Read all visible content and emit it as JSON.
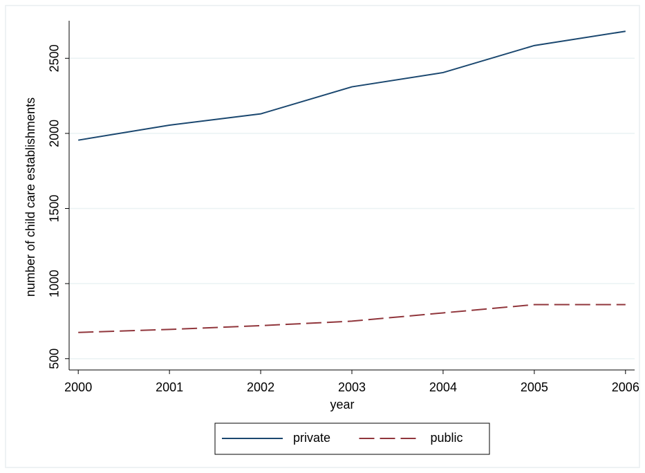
{
  "chart_data": {
    "type": "line",
    "x_label": "year",
    "y_label": "number of child care establishments",
    "x": [
      2000,
      2001,
      2002,
      2003,
      2004,
      2005,
      2006
    ],
    "series": [
      {
        "name": "private",
        "color": "#1a476f",
        "dash": "solid",
        "values": [
          1955,
          2055,
          2130,
          2310,
          2405,
          2585,
          2680
        ]
      },
      {
        "name": "public",
        "color": "#90353b",
        "dash": "dashed",
        "values": [
          675,
          695,
          720,
          750,
          805,
          860,
          860
        ]
      }
    ],
    "xlim": [
      1999.9,
      2006.1
    ],
    "xticks": [
      2000,
      2001,
      2002,
      2003,
      2004,
      2005,
      2006
    ],
    "ylim": [
      425,
      2750
    ],
    "yticks": [
      500,
      1000,
      1500,
      2000,
      2500
    ],
    "grid": true,
    "legend": "bottom"
  }
}
